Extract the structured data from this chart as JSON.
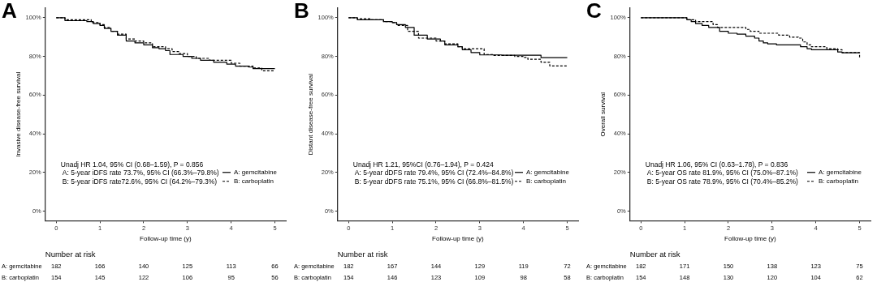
{
  "chart_data": [
    {
      "type": "step",
      "title": "A",
      "xlabel": "Follow-up time (y)",
      "ylabel": "Invasive disease-free survival",
      "xlim": [
        -0.25,
        5.25
      ],
      "ylim": [
        -5,
        105
      ],
      "xticks": [
        0,
        1,
        2,
        3,
        4,
        5
      ],
      "yticks": [
        {
          "value": 0,
          "label": "0%"
        },
        {
          "value": 20,
          "label": "20%"
        },
        {
          "value": 40,
          "label": "40%"
        },
        {
          "value": 60,
          "label": "60%"
        },
        {
          "value": 80,
          "label": "80%"
        },
        {
          "value": 100,
          "label": "100%"
        }
      ],
      "grid": false,
      "legend": "bottom right",
      "marker": "none",
      "series": [
        {
          "name": "A: gemcitabine",
          "color": "#000000",
          "line_style": "solid",
          "x": [
            0,
            0.2,
            0.7,
            0.85,
            1.0,
            1.1,
            1.25,
            1.4,
            1.6,
            1.8,
            2.0,
            2.2,
            2.35,
            2.5,
            2.6,
            2.9,
            3.1,
            3.3,
            3.6,
            3.9,
            4.1,
            4.4,
            4.5,
            5.0
          ],
          "values": [
            100,
            98.5,
            98,
            97,
            96,
            94.5,
            93,
            91,
            88,
            87,
            86,
            84.5,
            84,
            83,
            81,
            80,
            79,
            78,
            77,
            76,
            75,
            74.5,
            73.7,
            73.7
          ]
        },
        {
          "name": "B: carboplatin",
          "color": "#000000",
          "line_style": "dashed",
          "x": [
            0,
            0.2,
            0.8,
            1.0,
            1.1,
            1.25,
            1.4,
            1.6,
            1.8,
            2.0,
            2.2,
            2.5,
            2.65,
            2.8,
            3.0,
            3.2,
            3.5,
            4.0,
            4.2,
            4.5,
            4.7,
            5.0
          ],
          "values": [
            100,
            99,
            97.5,
            96.5,
            95,
            93,
            91.5,
            89,
            88,
            87,
            85,
            84,
            82.5,
            81.5,
            80,
            79,
            78,
            76.5,
            75,
            74,
            72.6,
            72.6
          ]
        }
      ],
      "annotations": [
        "Unadj HR 1.04, 95% CI (0.68–1.59), P = 0.856",
        "A: 5-year iDFS rate 73.7%, 95% CI (66.3%–79.8%)",
        "B: 5-year iDFS rate72.6%, 95% CI (64.2%–79.3%)",
        "Number at risk",
        "A: gemcitabine",
        "182",
        "166",
        "140",
        "125",
        "113",
        "66",
        "B: carboplatin",
        "154",
        "145",
        "122",
        "106",
        "95",
        "56"
      ]
    },
    {
      "type": "step",
      "title": "B",
      "xlabel": "Follow-up time (y)",
      "ylabel": "Distant disease-free survival",
      "xlim": [
        -0.25,
        5.25
      ],
      "ylim": [
        -5,
        105
      ],
      "xticks": [
        0,
        1,
        2,
        3,
        4,
        5
      ],
      "yticks": [
        {
          "value": 0,
          "label": "0%"
        },
        {
          "value": 20,
          "label": "20%"
        },
        {
          "value": 40,
          "label": "40%"
        },
        {
          "value": 60,
          "label": "60%"
        },
        {
          "value": 80,
          "label": "80%"
        },
        {
          "value": 100,
          "label": "100%"
        }
      ],
      "grid": false,
      "legend": "bottom right",
      "marker": "none",
      "series": [
        {
          "name": "A: gemcitabine",
          "color": "#000000",
          "line_style": "solid",
          "x": [
            0,
            0.2,
            0.8,
            1.0,
            1.1,
            1.3,
            1.5,
            1.8,
            2.1,
            2.2,
            2.5,
            2.6,
            2.8,
            3.0,
            3.5,
            4.4,
            5.0
          ],
          "values": [
            100,
            99,
            98,
            97.5,
            96.5,
            95,
            91,
            89,
            88,
            86,
            85,
            83.5,
            82,
            80.8,
            80.6,
            79.4,
            79.4
          ]
        },
        {
          "name": "B: carboplatin",
          "color": "#000000",
          "line_style": "dashed",
          "x": [
            0,
            0.2,
            0.5,
            0.8,
            1.0,
            1.1,
            1.35,
            1.6,
            2.0,
            2.2,
            2.5,
            2.6,
            3.1,
            3.3,
            3.8,
            4.0,
            4.1,
            4.4,
            4.6,
            5.0
          ],
          "values": [
            100,
            99.5,
            99,
            98,
            97.5,
            96,
            93,
            89.5,
            88,
            86.5,
            85,
            84,
            81,
            80.5,
            80,
            79.5,
            78.5,
            77,
            75.1,
            75.1
          ]
        }
      ],
      "annotations": [
        "Unadj HR 1.21, 95%CI (0.76–1.94), P = 0.424",
        "A: 5-year dDFS rate 79.4%, 95% CI (72.4%–84.8%)",
        "B: 5-year dDFS rate 75.1%, 95% CI (66.8%–81.5%)",
        "Number at risk",
        "A: gemcitabine",
        "182",
        "167",
        "144",
        "129",
        "119",
        "72",
        "B: carboplatin",
        "154",
        "146",
        "123",
        "109",
        "98",
        "58"
      ]
    },
    {
      "type": "step",
      "title": "C",
      "xlabel": "Follow-up time (y)",
      "ylabel": "Overall survival",
      "xlim": [
        -0.25,
        5.25
      ],
      "ylim": [
        -5,
        105
      ],
      "xticks": [
        0,
        1,
        2,
        3,
        4,
        5
      ],
      "yticks": [
        {
          "value": 0,
          "label": "0%"
        },
        {
          "value": 20,
          "label": "20%"
        },
        {
          "value": 40,
          "label": "40%"
        },
        {
          "value": 60,
          "label": "60%"
        },
        {
          "value": 80,
          "label": "80%"
        },
        {
          "value": 100,
          "label": "100%"
        }
      ],
      "grid": false,
      "legend": "bottom right",
      "marker": "none",
      "series": [
        {
          "name": "A: gemcitabine",
          "color": "#000000",
          "line_style": "solid",
          "x": [
            0,
            1.0,
            1.05,
            1.15,
            1.25,
            1.4,
            1.55,
            1.8,
            2.0,
            2.2,
            2.4,
            2.6,
            2.7,
            2.8,
            2.9,
            3.1,
            3.65,
            3.8,
            3.9,
            4.5,
            4.6,
            5.0
          ],
          "values": [
            100,
            100,
            99,
            98,
            97,
            96,
            95,
            93,
            92,
            91.5,
            90.5,
            89.5,
            88,
            87,
            86.5,
            86,
            85,
            84,
            83.5,
            82.3,
            81.9,
            81.9
          ]
        },
        {
          "name": "B: carboplatin",
          "color": "#000000",
          "line_style": "dashed",
          "x": [
            0,
            1.05,
            1.25,
            1.65,
            1.75,
            2.4,
            2.5,
            2.7,
            3.15,
            3.4,
            3.6,
            3.7,
            3.8,
            3.9,
            4.25,
            4.5,
            4.6,
            4.95,
            5.0
          ],
          "values": [
            100,
            99,
            98,
            96.5,
            95,
            94,
            93,
            92,
            91,
            90,
            89.5,
            87.5,
            86,
            85,
            84,
            83.5,
            82,
            82,
            78.9
          ]
        }
      ],
      "annotations": [
        "Unadj HR 1.06, 95% CI (0.63–1.78), P = 0.836",
        "A: 5-year OS rate 81.9%, 95% CI (75.0%–87.1%)",
        "B: 5-year OS rate 78.9%, 95% CI (70.4%–85.2%)",
        "Number at risk",
        "A: gemcitabine",
        "182",
        "171",
        "150",
        "138",
        "123",
        "75",
        "B: carboplatin",
        "154",
        "148",
        "130",
        "120",
        "104",
        "62"
      ]
    }
  ]
}
